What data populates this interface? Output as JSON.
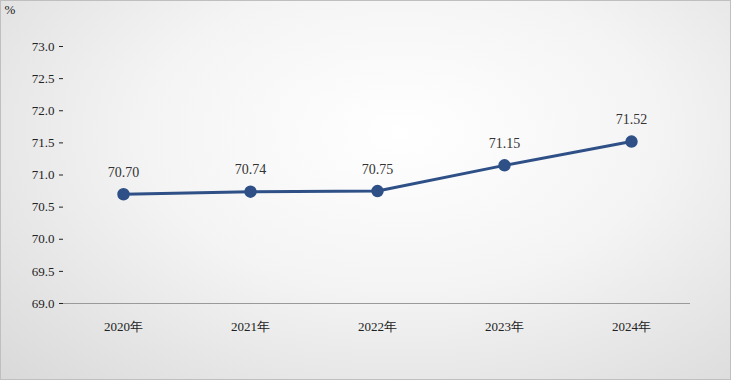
{
  "chart_data": {
    "type": "line",
    "ylabel": "%",
    "categories": [
      "2020年",
      "2021年",
      "2022年",
      "2023年",
      "2024年"
    ],
    "values": [
      70.7,
      70.74,
      70.75,
      71.15,
      71.52
    ],
    "value_labels": [
      "70.70",
      "70.74",
      "70.75",
      "71.15",
      "71.52"
    ],
    "color": "#2e5087",
    "marker": "circle",
    "data_labels": true,
    "grid": false,
    "ylim": [
      69,
      73
    ],
    "yticks": [
      {
        "value": 69,
        "label": "69.0"
      },
      {
        "value": 69.5,
        "label": "69.5"
      },
      {
        "value": 70,
        "label": "70.0"
      },
      {
        "value": 70.5,
        "label": "70.5"
      },
      {
        "value": 71,
        "label": "71.0"
      },
      {
        "value": 71.5,
        "label": "71.5"
      },
      {
        "value": 72,
        "label": "72.0"
      },
      {
        "value": 72.5,
        "label": "72.5"
      },
      {
        "value": 73,
        "label": "73.0"
      }
    ]
  }
}
